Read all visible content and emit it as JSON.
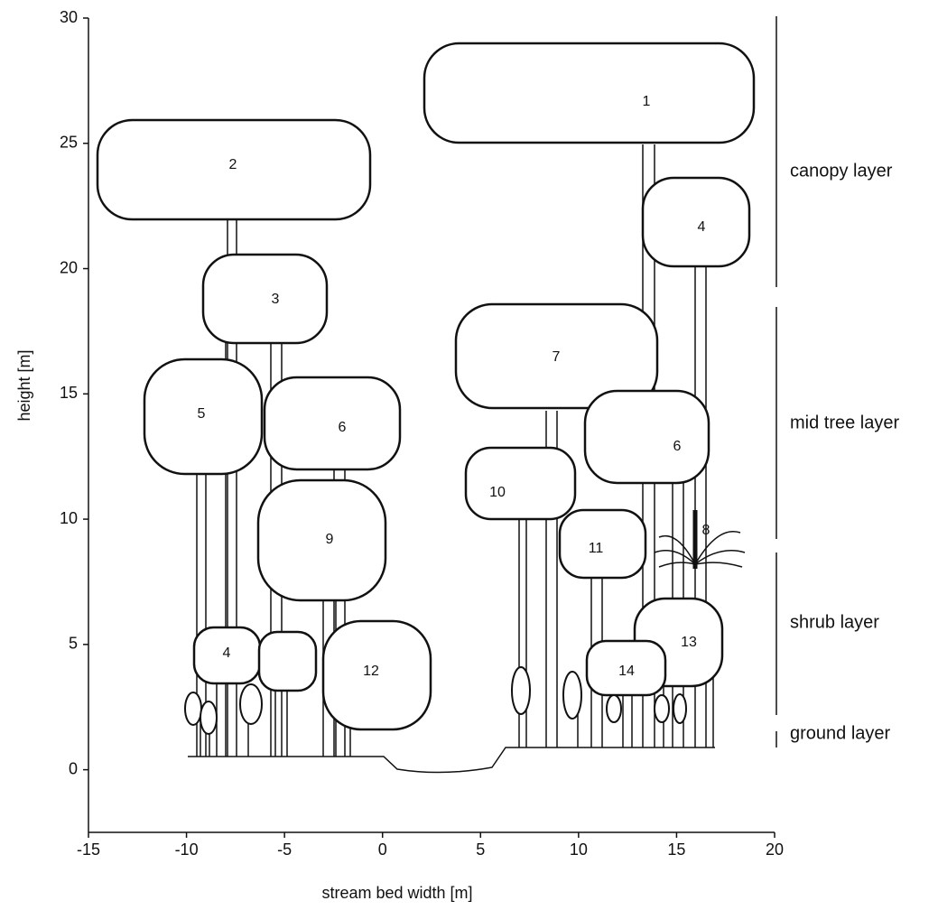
{
  "chart_data": {
    "type": "diagram",
    "xlabel": "stream bed width [m]",
    "ylabel": "height [m]",
    "xlim": [
      -15,
      20
    ],
    "ylim": [
      -2.5,
      30
    ],
    "xticks": [
      -15,
      -10,
      -5,
      0,
      5,
      10,
      15,
      20
    ],
    "yticks": [
      0,
      5,
      10,
      15,
      20,
      25,
      30
    ],
    "trees": [
      {
        "label": "1"
      },
      {
        "label": "2"
      },
      {
        "label": "3"
      },
      {
        "label": "4"
      },
      {
        "label": "5"
      },
      {
        "label": "6"
      },
      {
        "label": "7"
      },
      {
        "label": "6"
      },
      {
        "label": "10"
      },
      {
        "label": "9"
      },
      {
        "label": "11"
      },
      {
        "label": "8"
      },
      {
        "label": "13"
      },
      {
        "label": "14"
      },
      {
        "label": "4"
      },
      {
        "label": "12"
      }
    ],
    "layers": [
      "canopy layer",
      "mid tree layer",
      "shrub layer",
      "ground layer"
    ]
  }
}
